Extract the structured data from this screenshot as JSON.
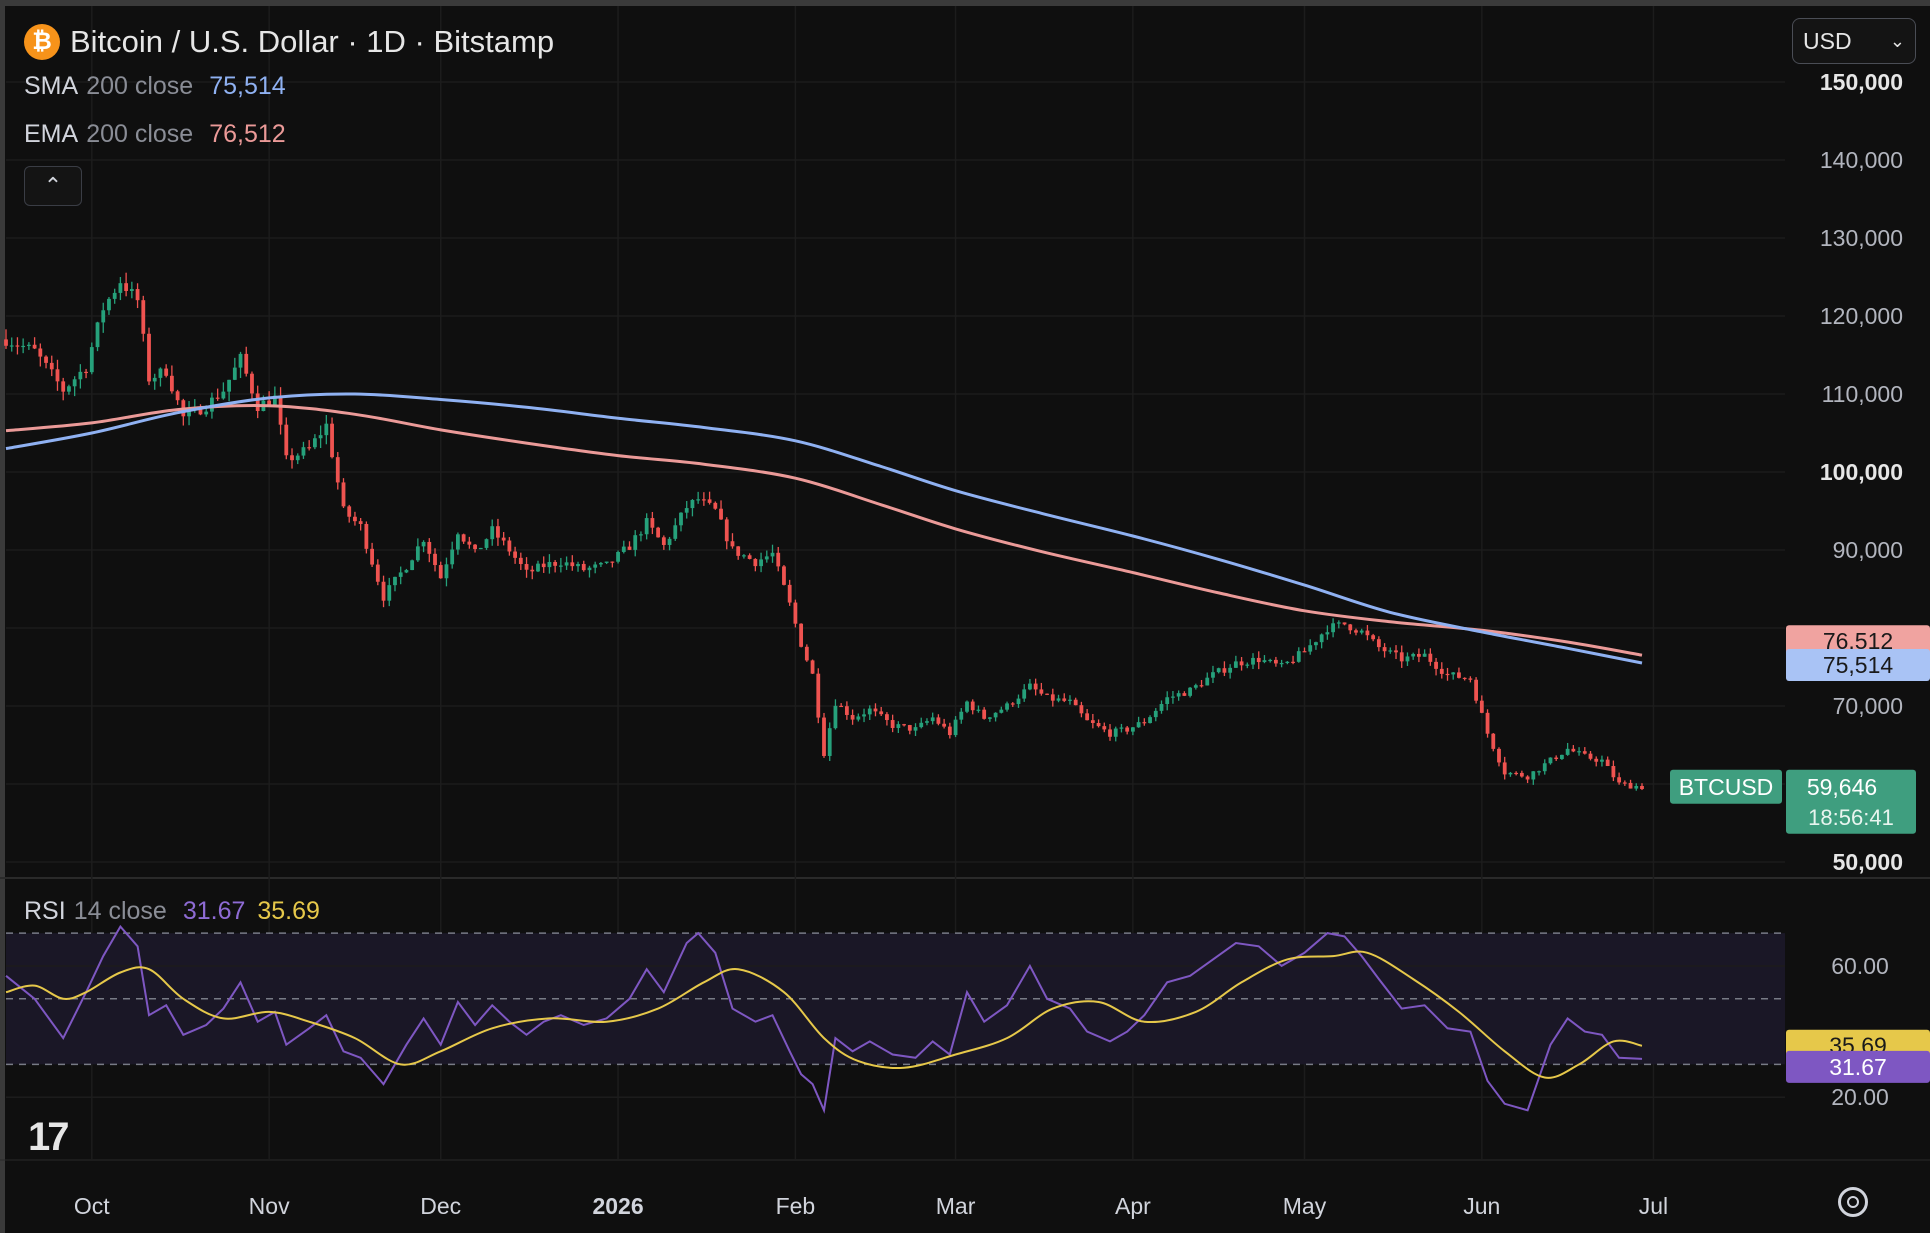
{
  "header": {
    "title": "Bitcoin / U.S. Dollar · 1D · Bitstamp",
    "currency_select": "USD",
    "currency_caret": "⌄",
    "collapse_glyph": "⌃",
    "logo_text": "17"
  },
  "indicators": {
    "sma": {
      "name": "SMA",
      "params": "200 close",
      "value": "75,514",
      "color": "#8fb1f2"
    },
    "ema": {
      "name": "EMA",
      "params": "200 close",
      "value": "76,512",
      "color": "#eb9a98"
    },
    "rsi": {
      "name": "RSI",
      "params": "14 close",
      "value": "31.67",
      "ma_value": "35.69",
      "color": "#7e57c2",
      "ma_color": "#e6c84a"
    }
  },
  "colors": {
    "background": "#0f0f0f",
    "up": "#26a17b",
    "down": "#ef5350",
    "grid": "#1c1c1c",
    "last_price_bg": "#3f9e7f"
  },
  "chart_data": [
    {
      "type": "candlestick",
      "title": "Bitcoin / U.S. Dollar · 1D · Bitstamp",
      "symbol_label": "BTCUSD",
      "last_price": "59,646",
      "countdown": "18:56:41",
      "y_ticks": [
        "150,000",
        "140,000",
        "130,000",
        "120,000",
        "110,000",
        "100,000",
        "90,000",
        "70,000",
        "50,000"
      ],
      "y_ticks_values": [
        150000,
        140000,
        130000,
        120000,
        110000,
        100000,
        90000,
        70000,
        50000
      ],
      "ylim": [
        50000,
        150000
      ],
      "x_ticks": [
        {
          "label": "Oct",
          "date": "2025-10-01"
        },
        {
          "label": "Nov",
          "date": "2025-11-01"
        },
        {
          "label": "Dec",
          "date": "2025-12-01"
        },
        {
          "label": "2026",
          "date": "2026-01-01"
        },
        {
          "label": "Feb",
          "date": "2026-02-01"
        },
        {
          "label": "Mar",
          "date": "2026-03-01"
        },
        {
          "label": "Apr",
          "date": "2026-04-01"
        },
        {
          "label": "May",
          "date": "2026-05-01"
        },
        {
          "label": "Jun",
          "date": "2026-06-01"
        },
        {
          "label": "Jul",
          "date": "2026-07-01"
        }
      ],
      "xlim": [
        "2025-09-16",
        "2026-07-24"
      ],
      "close_path": [
        [
          "2025-09-16",
          117000
        ],
        [
          "2025-09-21",
          115500
        ],
        [
          "2025-09-26",
          110500
        ],
        [
          "2025-09-30",
          113500
        ],
        [
          "2025-10-03",
          121000
        ],
        [
          "2025-10-06",
          124500
        ],
        [
          "2025-10-09",
          122000
        ],
        [
          "2025-10-11",
          112000
        ],
        [
          "2025-10-14",
          113000
        ],
        [
          "2025-10-17",
          107000
        ],
        [
          "2025-10-21",
          108500
        ],
        [
          "2025-10-24",
          110500
        ],
        [
          "2025-10-27",
          114500
        ],
        [
          "2025-10-30",
          108500
        ],
        [
          "2025-11-02",
          109500
        ],
        [
          "2025-11-04",
          101500
        ],
        [
          "2025-11-08",
          103000
        ],
        [
          "2025-11-11",
          106000
        ],
        [
          "2025-11-14",
          95000
        ],
        [
          "2025-11-17",
          93000
        ],
        [
          "2025-11-21",
          84000
        ],
        [
          "2025-11-25",
          88000
        ],
        [
          "2025-11-28",
          91500
        ],
        [
          "2025-12-01",
          86500
        ],
        [
          "2025-12-04",
          92500
        ],
        [
          "2025-12-07",
          89500
        ],
        [
          "2025-12-10",
          92500
        ],
        [
          "2025-12-13",
          90000
        ],
        [
          "2025-12-16",
          87000
        ],
        [
          "2025-12-19",
          88000
        ],
        [
          "2025-12-22",
          88500
        ],
        [
          "2025-12-26",
          87500
        ],
        [
          "2025-12-30",
          88000
        ],
        [
          "2026-01-03",
          90500
        ],
        [
          "2026-01-06",
          93500
        ],
        [
          "2026-01-09",
          90500
        ],
        [
          "2026-01-13",
          95500
        ],
        [
          "2026-01-15",
          96500
        ],
        [
          "2026-01-18",
          95000
        ],
        [
          "2026-01-21",
          90000
        ],
        [
          "2026-01-25",
          88500
        ],
        [
          "2026-01-28",
          89500
        ],
        [
          "2026-01-31",
          83000
        ],
        [
          "2026-02-02",
          78000
        ],
        [
          "2026-02-04",
          74000
        ],
        [
          "2026-02-06",
          64000
        ],
        [
          "2026-02-08",
          70500
        ],
        [
          "2026-02-11",
          68500
        ],
        [
          "2026-02-14",
          69500
        ],
        [
          "2026-02-18",
          67500
        ],
        [
          "2026-02-22",
          67000
        ],
        [
          "2026-02-25",
          68500
        ],
        [
          "2026-02-28",
          66500
        ],
        [
          "2026-03-03",
          70500
        ],
        [
          "2026-03-06",
          68500
        ],
        [
          "2026-03-10",
          70000
        ],
        [
          "2026-03-14",
          72500
        ],
        [
          "2026-03-17",
          71000
        ],
        [
          "2026-03-21",
          70500
        ],
        [
          "2026-03-24",
          68000
        ],
        [
          "2026-03-28",
          66500
        ],
        [
          "2026-03-31",
          67000
        ],
        [
          "2026-04-03",
          68000
        ],
        [
          "2026-04-07",
          71000
        ],
        [
          "2026-04-11",
          72000
        ],
        [
          "2026-04-15",
          74000
        ],
        [
          "2026-04-19",
          75500
        ],
        [
          "2026-04-23",
          76000
        ],
        [
          "2026-04-27",
          75000
        ],
        [
          "2026-05-01",
          77000
        ],
        [
          "2026-05-05",
          80000
        ],
        [
          "2026-05-08",
          80500
        ],
        [
          "2026-05-11",
          79500
        ],
        [
          "2026-05-14",
          77500
        ],
        [
          "2026-05-18",
          76000
        ],
        [
          "2026-05-22",
          76500
        ],
        [
          "2026-05-26",
          74000
        ],
        [
          "2026-05-30",
          73500
        ],
        [
          "2026-06-02",
          66500
        ],
        [
          "2026-06-05",
          61500
        ],
        [
          "2026-06-09",
          61000
        ],
        [
          "2026-06-13",
          63000
        ],
        [
          "2026-06-16",
          64500
        ],
        [
          "2026-06-19",
          63500
        ],
        [
          "2026-06-22",
          63000
        ],
        [
          "2026-06-25",
          60000
        ],
        [
          "2026-06-29",
          59646
        ]
      ],
      "sma_path": [
        [
          "2025-09-16",
          103000
        ],
        [
          "2025-10-01",
          105000
        ],
        [
          "2025-10-16",
          107600
        ],
        [
          "2025-11-01",
          109500
        ],
        [
          "2025-11-16",
          110000
        ],
        [
          "2025-12-01",
          109300
        ],
        [
          "2025-12-16",
          108300
        ],
        [
          "2026-01-01",
          106900
        ],
        [
          "2026-01-16",
          105700
        ],
        [
          "2026-02-01",
          104000
        ],
        [
          "2026-02-16",
          100700
        ],
        [
          "2026-03-01",
          97600
        ],
        [
          "2026-03-16",
          94700
        ],
        [
          "2026-04-01",
          91800
        ],
        [
          "2026-04-16",
          88800
        ],
        [
          "2026-05-01",
          85500
        ],
        [
          "2026-05-16",
          82000
        ],
        [
          "2026-06-01",
          79500
        ],
        [
          "2026-06-16",
          77400
        ],
        [
          "2026-06-29",
          75514
        ]
      ],
      "ema_path": [
        [
          "2025-09-16",
          105300
        ],
        [
          "2025-10-01",
          106300
        ],
        [
          "2025-10-16",
          108000
        ],
        [
          "2025-11-01",
          108500
        ],
        [
          "2025-11-16",
          107400
        ],
        [
          "2025-12-01",
          105400
        ],
        [
          "2025-12-16",
          103700
        ],
        [
          "2026-01-01",
          102100
        ],
        [
          "2026-01-16",
          101000
        ],
        [
          "2026-02-01",
          99200
        ],
        [
          "2026-02-16",
          95800
        ],
        [
          "2026-03-01",
          92700
        ],
        [
          "2026-03-16",
          89800
        ],
        [
          "2026-04-01",
          87100
        ],
        [
          "2026-04-16",
          84500
        ],
        [
          "2026-05-01",
          82200
        ],
        [
          "2026-05-16",
          80800
        ],
        [
          "2026-06-01",
          79700
        ],
        [
          "2026-06-16",
          78200
        ],
        [
          "2026-06-29",
          76512
        ]
      ]
    },
    {
      "type": "line",
      "title": "RSI",
      "y_ticks": [
        "60.00",
        "20.00"
      ],
      "y_ticks_values": [
        60,
        20
      ],
      "ylim": [
        10,
        74
      ],
      "band_levels": [
        70,
        50,
        30
      ],
      "rsi_path": [
        [
          "2025-09-16",
          57
        ],
        [
          "2025-09-21",
          50
        ],
        [
          "2025-09-26",
          38
        ],
        [
          "2025-09-30",
          52
        ],
        [
          "2025-10-03",
          63
        ],
        [
          "2025-10-06",
          72
        ],
        [
          "2025-10-09",
          66
        ],
        [
          "2025-10-11",
          45
        ],
        [
          "2025-10-14",
          48
        ],
        [
          "2025-10-17",
          39
        ],
        [
          "2025-10-21",
          42
        ],
        [
          "2025-10-24",
          47
        ],
        [
          "2025-10-27",
          55
        ],
        [
          "2025-10-30",
          43
        ],
        [
          "2025-11-02",
          46
        ],
        [
          "2025-11-04",
          36
        ],
        [
          "2025-11-08",
          41
        ],
        [
          "2025-11-11",
          45
        ],
        [
          "2025-11-14",
          34
        ],
        [
          "2025-11-17",
          32
        ],
        [
          "2025-11-21",
          24
        ],
        [
          "2025-11-25",
          36
        ],
        [
          "2025-11-28",
          44
        ],
        [
          "2025-12-01",
          36
        ],
        [
          "2025-12-04",
          49
        ],
        [
          "2025-12-07",
          42
        ],
        [
          "2025-12-10",
          48
        ],
        [
          "2025-12-13",
          43
        ],
        [
          "2025-12-16",
          39
        ],
        [
          "2025-12-19",
          43
        ],
        [
          "2025-12-22",
          45
        ],
        [
          "2025-12-26",
          42
        ],
        [
          "2025-12-30",
          44
        ],
        [
          "2026-01-03",
          50
        ],
        [
          "2026-01-06",
          59
        ],
        [
          "2026-01-09",
          52
        ],
        [
          "2026-01-13",
          67
        ],
        [
          "2026-01-15",
          70
        ],
        [
          "2026-01-18",
          64
        ],
        [
          "2026-01-21",
          47
        ],
        [
          "2026-01-25",
          43
        ],
        [
          "2026-01-28",
          45
        ],
        [
          "2026-01-31",
          34
        ],
        [
          "2026-02-02",
          27
        ],
        [
          "2026-02-04",
          24
        ],
        [
          "2026-02-06",
          16
        ],
        [
          "2026-02-08",
          38
        ],
        [
          "2026-02-11",
          34
        ],
        [
          "2026-02-14",
          37
        ],
        [
          "2026-02-18",
          33
        ],
        [
          "2026-02-22",
          32
        ],
        [
          "2026-02-25",
          37
        ],
        [
          "2026-02-28",
          33
        ],
        [
          "2026-03-03",
          52
        ],
        [
          "2026-03-06",
          43
        ],
        [
          "2026-03-10",
          48
        ],
        [
          "2026-03-14",
          60
        ],
        [
          "2026-03-17",
          50
        ],
        [
          "2026-03-21",
          47
        ],
        [
          "2026-03-24",
          40
        ],
        [
          "2026-03-28",
          37
        ],
        [
          "2026-03-31",
          40
        ],
        [
          "2026-04-03",
          45
        ],
        [
          "2026-04-07",
          55
        ],
        [
          "2026-04-11",
          57
        ],
        [
          "2026-04-15",
          62
        ],
        [
          "2026-04-19",
          67
        ],
        [
          "2026-04-23",
          66
        ],
        [
          "2026-04-27",
          60
        ],
        [
          "2026-05-01",
          64
        ],
        [
          "2026-05-05",
          70
        ],
        [
          "2026-05-08",
          69
        ],
        [
          "2026-05-11",
          63
        ],
        [
          "2026-05-14",
          56
        ],
        [
          "2026-05-18",
          47
        ],
        [
          "2026-05-22",
          48
        ],
        [
          "2026-05-26",
          41
        ],
        [
          "2026-05-30",
          40
        ],
        [
          "2026-06-02",
          25
        ],
        [
          "2026-06-05",
          18
        ],
        [
          "2026-06-09",
          16
        ],
        [
          "2026-06-13",
          36
        ],
        [
          "2026-06-16",
          44
        ],
        [
          "2026-06-19",
          40
        ],
        [
          "2026-06-22",
          39
        ],
        [
          "2026-06-25",
          32
        ],
        [
          "2026-06-29",
          31.67
        ]
      ],
      "rsi_ma_path": [
        [
          "2025-09-16",
          52
        ],
        [
          "2025-09-21",
          54
        ],
        [
          "2025-09-26",
          50
        ],
        [
          "2025-09-30",
          52
        ],
        [
          "2025-10-06",
          58
        ],
        [
          "2025-10-11",
          59
        ],
        [
          "2025-10-17",
          50
        ],
        [
          "2025-10-24",
          44
        ],
        [
          "2025-11-01",
          46
        ],
        [
          "2025-11-08",
          43
        ],
        [
          "2025-11-16",
          38
        ],
        [
          "2025-11-24",
          30
        ],
        [
          "2025-12-01",
          34
        ],
        [
          "2025-12-10",
          41
        ],
        [
          "2025-12-20",
          44
        ],
        [
          "2025-12-30",
          43
        ],
        [
          "2026-01-08",
          47
        ],
        [
          "2026-01-16",
          55
        ],
        [
          "2026-01-22",
          59
        ],
        [
          "2026-01-30",
          52
        ],
        [
          "2026-02-06",
          38
        ],
        [
          "2026-02-12",
          31
        ],
        [
          "2026-02-20",
          29
        ],
        [
          "2026-03-01",
          33
        ],
        [
          "2026-03-10",
          38
        ],
        [
          "2026-03-18",
          47
        ],
        [
          "2026-03-26",
          49
        ],
        [
          "2026-04-03",
          43
        ],
        [
          "2026-04-12",
          46
        ],
        [
          "2026-04-20",
          55
        ],
        [
          "2026-04-28",
          62
        ],
        [
          "2026-05-06",
          63
        ],
        [
          "2026-05-12",
          64
        ],
        [
          "2026-05-20",
          56
        ],
        [
          "2026-05-28",
          46
        ],
        [
          "2026-06-05",
          34
        ],
        [
          "2026-06-12",
          26
        ],
        [
          "2026-06-18",
          30
        ],
        [
          "2026-06-24",
          37
        ],
        [
          "2026-06-29",
          35.69
        ]
      ]
    }
  ]
}
